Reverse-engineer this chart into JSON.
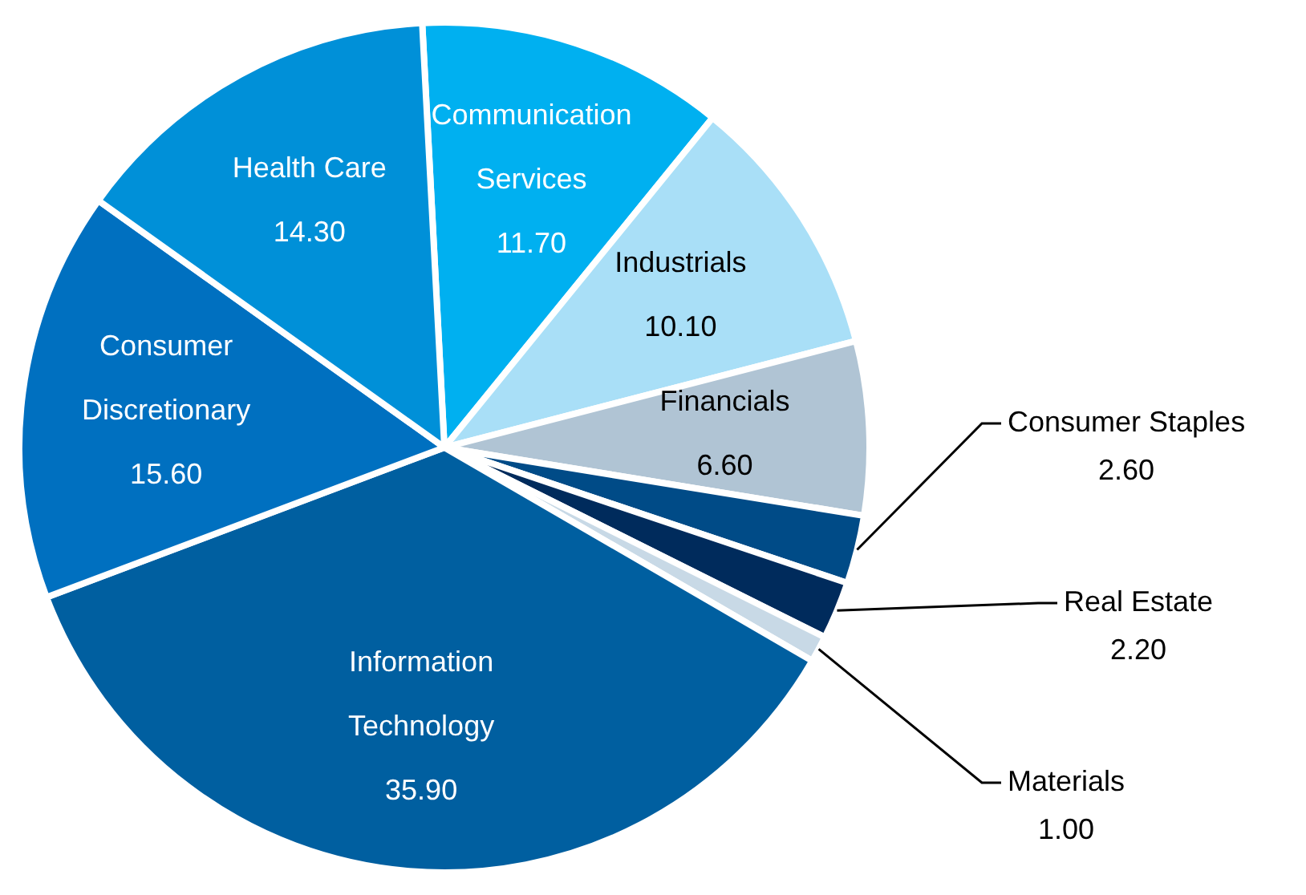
{
  "chart_data": {
    "type": "pie",
    "categories": [
      "Communication Services",
      "Industrials",
      "Financials",
      "Consumer Staples",
      "Real Estate",
      "Materials",
      "Information Technology",
      "Consumer Discretionary",
      "Health Care"
    ],
    "values": [
      11.7,
      10.1,
      6.6,
      2.6,
      2.2,
      1.0,
      35.9,
      15.6,
      14.3
    ],
    "colors": [
      "#00b0f0",
      "#a9dff7",
      "#b0c4d4",
      "#004b87",
      "#002b5c",
      "#c8d9e6",
      "#005fa0",
      "#0070c0",
      "#0090d8"
    ],
    "value_labels": [
      "11.70",
      "10.10",
      "6.60",
      "2.60",
      "2.20",
      "1.00",
      "35.90",
      "15.60",
      "14.30"
    ],
    "legend": false
  }
}
